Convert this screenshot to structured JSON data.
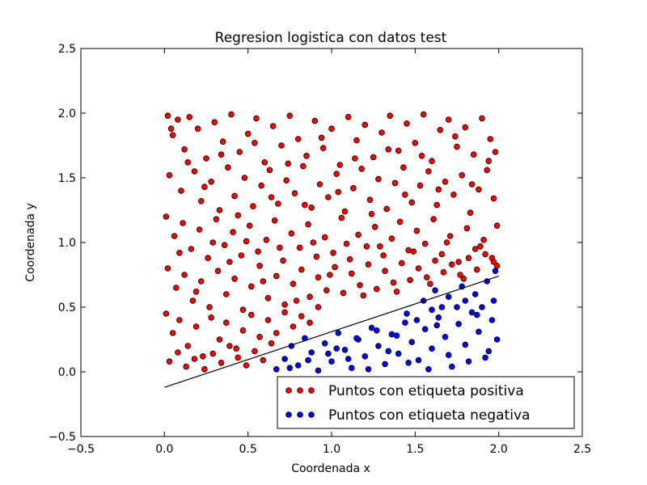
{
  "chart_data": {
    "type": "scatter",
    "title": "Regresion logistica con datos test",
    "xlabel": "Coordenada x",
    "ylabel": "Coordenada y",
    "xlim": [
      -0.5,
      2.5
    ],
    "ylim": [
      -0.5,
      2.5
    ],
    "xticks": [
      -0.5,
      0.0,
      0.5,
      1.0,
      1.5,
      2.0,
      2.5
    ],
    "yticks": [
      -0.5,
      0.0,
      0.5,
      1.0,
      1.5,
      2.0,
      2.5
    ],
    "xtick_labels": [
      "−0.5",
      "0.0",
      "0.5",
      "1.0",
      "1.5",
      "2.0",
      "2.5"
    ],
    "ytick_labels": [
      "−0.5",
      "0.0",
      "0.5",
      "1.0",
      "1.5",
      "2.0",
      "2.5"
    ],
    "grid": false,
    "legend_position": "lower-right",
    "series": [
      {
        "name": "Puntos con etiqueta positiva",
        "color": "#ff0000",
        "points": [
          [
            0.02,
            1.98
          ],
          [
            0.05,
            1.83
          ],
          [
            0.08,
            1.95
          ],
          [
            0.12,
            1.72
          ],
          [
            0.15,
            1.97
          ],
          [
            0.2,
            1.88
          ],
          [
            0.25,
            1.65
          ],
          [
            0.3,
            1.93
          ],
          [
            0.35,
            1.78
          ],
          [
            0.4,
            1.99
          ],
          [
            0.45,
            1.7
          ],
          [
            0.5,
            1.84
          ],
          [
            0.55,
            1.96
          ],
          [
            0.6,
            1.62
          ],
          [
            0.65,
            1.9
          ],
          [
            0.7,
            1.75
          ],
          [
            0.75,
            1.98
          ],
          [
            0.8,
            1.8
          ],
          [
            0.85,
            1.67
          ],
          [
            0.9,
            1.94
          ],
          [
            0.95,
            1.73
          ],
          [
            1.0,
            1.88
          ],
          [
            1.05,
            1.6
          ],
          [
            1.1,
            1.97
          ],
          [
            1.15,
            1.79
          ],
          [
            1.2,
            1.91
          ],
          [
            1.25,
            1.66
          ],
          [
            1.3,
            1.85
          ],
          [
            1.35,
            1.98
          ],
          [
            1.4,
            1.71
          ],
          [
            1.45,
            1.92
          ],
          [
            1.5,
            1.77
          ],
          [
            1.55,
            1.99
          ],
          [
            1.6,
            1.63
          ],
          [
            1.65,
            1.87
          ],
          [
            1.7,
            1.95
          ],
          [
            1.75,
            1.74
          ],
          [
            1.8,
            1.89
          ],
          [
            1.85,
            1.68
          ],
          [
            1.9,
            1.96
          ],
          [
            1.95,
            1.8
          ],
          [
            1.98,
            1.7
          ],
          [
            0.03,
            1.52
          ],
          [
            0.1,
            1.4
          ],
          [
            0.18,
            1.55
          ],
          [
            0.22,
            1.32
          ],
          [
            0.28,
            1.47
          ],
          [
            0.33,
            1.25
          ],
          [
            0.38,
            1.58
          ],
          [
            0.42,
            1.36
          ],
          [
            0.48,
            1.5
          ],
          [
            0.53,
            1.28
          ],
          [
            0.58,
            1.44
          ],
          [
            0.63,
            1.56
          ],
          [
            0.68,
            1.3
          ],
          [
            0.73,
            1.48
          ],
          [
            0.78,
            1.38
          ],
          [
            0.83,
            1.59
          ],
          [
            0.88,
            1.27
          ],
          [
            0.93,
            1.45
          ],
          [
            0.98,
            1.35
          ],
          [
            1.03,
            1.53
          ],
          [
            1.08,
            1.24
          ],
          [
            1.13,
            1.42
          ],
          [
            1.18,
            1.57
          ],
          [
            1.23,
            1.33
          ],
          [
            1.28,
            1.49
          ],
          [
            1.33,
            1.26
          ],
          [
            1.38,
            1.46
          ],
          [
            1.43,
            1.58
          ],
          [
            1.48,
            1.31
          ],
          [
            1.53,
            1.44
          ],
          [
            1.58,
            1.55
          ],
          [
            1.63,
            1.29
          ],
          [
            1.68,
            1.47
          ],
          [
            1.73,
            1.37
          ],
          [
            1.78,
            1.52
          ],
          [
            1.83,
            1.23
          ],
          [
            1.88,
            1.41
          ],
          [
            1.93,
            1.56
          ],
          [
            1.97,
            1.34
          ],
          [
            0.01,
            1.2
          ],
          [
            0.06,
            1.05
          ],
          [
            0.11,
            1.15
          ],
          [
            0.16,
            0.95
          ],
          [
            0.21,
            1.1
          ],
          [
            0.26,
            0.88
          ],
          [
            0.31,
            1.18
          ],
          [
            0.36,
            0.98
          ],
          [
            0.41,
            1.08
          ],
          [
            0.46,
            0.9
          ],
          [
            0.51,
            1.13
          ],
          [
            0.56,
            0.93
          ],
          [
            0.61,
            1.02
          ],
          [
            0.66,
            1.17
          ],
          [
            0.71,
            0.86
          ],
          [
            0.76,
            1.07
          ],
          [
            0.81,
            0.96
          ],
          [
            0.86,
            1.14
          ],
          [
            0.91,
            0.89
          ],
          [
            0.96,
            1.04
          ],
          [
            1.01,
            0.92
          ],
          [
            1.06,
            1.19
          ],
          [
            1.11,
            0.87
          ],
          [
            1.16,
            1.06
          ],
          [
            1.21,
            0.97
          ],
          [
            1.26,
            1.12
          ],
          [
            1.31,
            0.9
          ],
          [
            1.36,
            1.03
          ],
          [
            1.41,
            1.16
          ],
          [
            1.46,
            0.94
          ],
          [
            1.51,
            1.09
          ],
          [
            1.56,
            0.99
          ],
          [
            1.61,
            1.18
          ],
          [
            1.66,
            0.91
          ],
          [
            1.71,
            1.05
          ],
          [
            1.76,
            0.85
          ],
          [
            1.81,
            1.11
          ],
          [
            1.86,
            0.95
          ],
          [
            1.91,
            1.02
          ],
          [
            1.96,
            0.88
          ],
          [
            1.99,
            1.13
          ],
          [
            0.02,
            0.8
          ],
          [
            0.07,
            0.65
          ],
          [
            0.12,
            0.75
          ],
          [
            0.17,
            0.55
          ],
          [
            0.22,
            0.7
          ],
          [
            0.27,
            0.5
          ],
          [
            0.32,
            0.78
          ],
          [
            0.37,
            0.6
          ],
          [
            0.42,
            0.72
          ],
          [
            0.47,
            0.48
          ],
          [
            0.52,
            0.66
          ],
          [
            0.57,
            0.82
          ],
          [
            0.62,
            0.57
          ],
          [
            0.67,
            0.74
          ],
          [
            0.72,
            0.52
          ],
          [
            0.77,
            0.68
          ],
          [
            0.82,
            0.79
          ],
          [
            0.87,
            0.58
          ],
          [
            0.92,
            0.73
          ],
          [
            0.97,
            0.63
          ],
          [
            1.02,
            0.81
          ],
          [
            1.07,
            0.61
          ],
          [
            1.12,
            0.76
          ],
          [
            1.17,
            0.67
          ],
          [
            1.22,
            0.83
          ],
          [
            1.27,
            0.64
          ],
          [
            1.32,
            0.78
          ],
          [
            1.37,
            0.69
          ],
          [
            1.42,
            0.84
          ],
          [
            1.47,
            0.71
          ],
          [
            1.52,
            0.8
          ],
          [
            1.57,
            0.73
          ],
          [
            1.62,
            0.86
          ],
          [
            1.67,
            0.77
          ],
          [
            1.72,
            0.83
          ],
          [
            1.77,
            0.75
          ],
          [
            1.82,
            0.88
          ],
          [
            1.87,
            0.79
          ],
          [
            1.92,
            0.91
          ],
          [
            1.97,
            0.85
          ],
          [
            0.01,
            0.45
          ],
          [
            0.05,
            0.3
          ],
          [
            0.09,
            0.4
          ],
          [
            0.14,
            0.2
          ],
          [
            0.19,
            0.35
          ],
          [
            0.23,
            0.12
          ],
          [
            0.28,
            0.42
          ],
          [
            0.33,
            0.25
          ],
          [
            0.37,
            0.38
          ],
          [
            0.43,
            0.18
          ],
          [
            0.47,
            0.32
          ],
          [
            0.52,
            0.44
          ],
          [
            0.57,
            0.27
          ],
          [
            0.62,
            0.4
          ],
          [
            0.67,
            0.3
          ],
          [
            0.72,
            0.46
          ],
          [
            0.77,
            0.35
          ],
          [
            0.82,
            0.43
          ],
          [
            0.87,
            0.38
          ],
          [
            0.92,
            0.5
          ],
          [
            0.03,
            0.08
          ],
          [
            0.08,
            0.15
          ],
          [
            0.13,
            0.04
          ],
          [
            0.18,
            0.1
          ],
          [
            0.24,
            0.02
          ],
          [
            0.29,
            0.14
          ],
          [
            0.34,
            0.07
          ],
          [
            0.39,
            0.2
          ],
          [
            0.44,
            0.11
          ],
          [
            0.49,
            0.05
          ],
          [
            0.54,
            0.16
          ],
          [
            0.59,
            0.09
          ],
          [
            0.64,
            0.22
          ],
          [
            0.04,
            1.88
          ],
          [
            0.14,
            1.62
          ],
          [
            0.24,
            1.43
          ],
          [
            0.34,
            1.68
          ],
          [
            0.44,
            1.21
          ],
          [
            0.54,
            1.77
          ],
          [
            0.64,
            1.35
          ],
          [
            0.74,
            1.61
          ],
          [
            0.84,
            1.29
          ],
          [
            0.94,
            1.81
          ],
          [
            1.04,
            1.39
          ],
          [
            1.14,
            1.65
          ],
          [
            1.24,
            1.22
          ],
          [
            1.34,
            1.72
          ],
          [
            1.44,
            1.37
          ],
          [
            1.54,
            1.67
          ],
          [
            1.64,
            1.41
          ],
          [
            1.74,
            1.82
          ],
          [
            1.84,
            1.45
          ],
          [
            1.94,
            1.63
          ],
          [
            0.09,
            0.92
          ],
          [
            0.19,
            0.62
          ],
          [
            0.29,
            1.0
          ],
          [
            0.39,
            0.85
          ],
          [
            0.49,
            1.01
          ],
          [
            0.59,
            0.7
          ],
          [
            0.69,
            0.96
          ],
          [
            0.79,
            0.55
          ],
          [
            0.89,
            1.0
          ],
          [
            0.99,
            0.75
          ],
          [
            1.09,
            0.99
          ],
          [
            1.19,
            0.59
          ],
          [
            1.29,
            0.97
          ],
          [
            1.39,
            0.62
          ],
          [
            1.49,
            0.93
          ],
          [
            1.59,
            0.68
          ],
          [
            1.69,
            1.0
          ],
          [
            1.79,
            0.72
          ],
          [
            1.89,
            0.97
          ],
          [
            1.99,
            0.82
          ]
        ]
      },
      {
        "name": "Puntos con etiqueta negativa",
        "color": "#0000ff",
        "points": [
          [
            0.67,
            0.02
          ],
          [
            0.72,
            0.1
          ],
          [
            0.76,
            0.2
          ],
          [
            0.8,
            0.05
          ],
          [
            0.84,
            0.26
          ],
          [
            0.88,
            0.15
          ],
          [
            0.92,
            0.01
          ],
          [
            0.96,
            0.22
          ],
          [
            1.0,
            0.08
          ],
          [
            1.04,
            0.3
          ],
          [
            1.08,
            0.17
          ],
          [
            1.12,
            0.03
          ],
          [
            1.16,
            0.25
          ],
          [
            1.2,
            0.12
          ],
          [
            1.24,
            0.34
          ],
          [
            1.28,
            0.2
          ],
          [
            1.32,
            0.06
          ],
          [
            1.36,
            0.29
          ],
          [
            1.4,
            0.14
          ],
          [
            1.44,
            0.38
          ],
          [
            1.48,
            0.23
          ],
          [
            1.52,
            0.09
          ],
          [
            1.56,
            0.33
          ],
          [
            1.6,
            0.18
          ],
          [
            1.64,
            0.42
          ],
          [
            1.68,
            0.27
          ],
          [
            1.72,
            0.04
          ],
          [
            1.76,
            0.37
          ],
          [
            1.8,
            0.21
          ],
          [
            1.84,
            0.46
          ],
          [
            1.88,
            0.31
          ],
          [
            1.92,
            0.11
          ],
          [
            1.96,
            0.4
          ],
          [
            1.99,
            0.25
          ],
          [
            0.75,
            0.03
          ],
          [
            0.86,
            0.09
          ],
          [
            0.98,
            0.14
          ],
          [
            1.1,
            0.1
          ],
          [
            1.22,
            0.02
          ],
          [
            1.34,
            0.16
          ],
          [
            1.46,
            0.07
          ],
          [
            1.58,
            0.02
          ],
          [
            1.7,
            0.13
          ],
          [
            1.82,
            0.08
          ],
          [
            1.94,
            0.16
          ],
          [
            1.03,
            0.18
          ],
          [
            1.15,
            0.26
          ],
          [
            1.27,
            0.32
          ],
          [
            1.39,
            0.28
          ],
          [
            1.51,
            0.4
          ],
          [
            1.63,
            0.36
          ],
          [
            1.75,
            0.5
          ],
          [
            1.87,
            0.44
          ],
          [
            1.97,
            0.55
          ],
          [
            1.62,
            0.63
          ],
          [
            1.7,
            0.58
          ],
          [
            1.78,
            0.66
          ],
          [
            1.86,
            0.6
          ],
          [
            1.93,
            0.7
          ],
          [
            1.98,
            0.78
          ],
          [
            1.55,
            0.55
          ],
          [
            1.66,
            0.5
          ],
          [
            1.8,
            0.55
          ],
          [
            1.9,
            0.5
          ],
          [
            1.45,
            0.45
          ],
          [
            1.6,
            0.48
          ]
        ]
      }
    ],
    "decision_line": {
      "x": [
        0.0,
        2.0
      ],
      "y": [
        -0.12,
        0.74
      ]
    }
  }
}
